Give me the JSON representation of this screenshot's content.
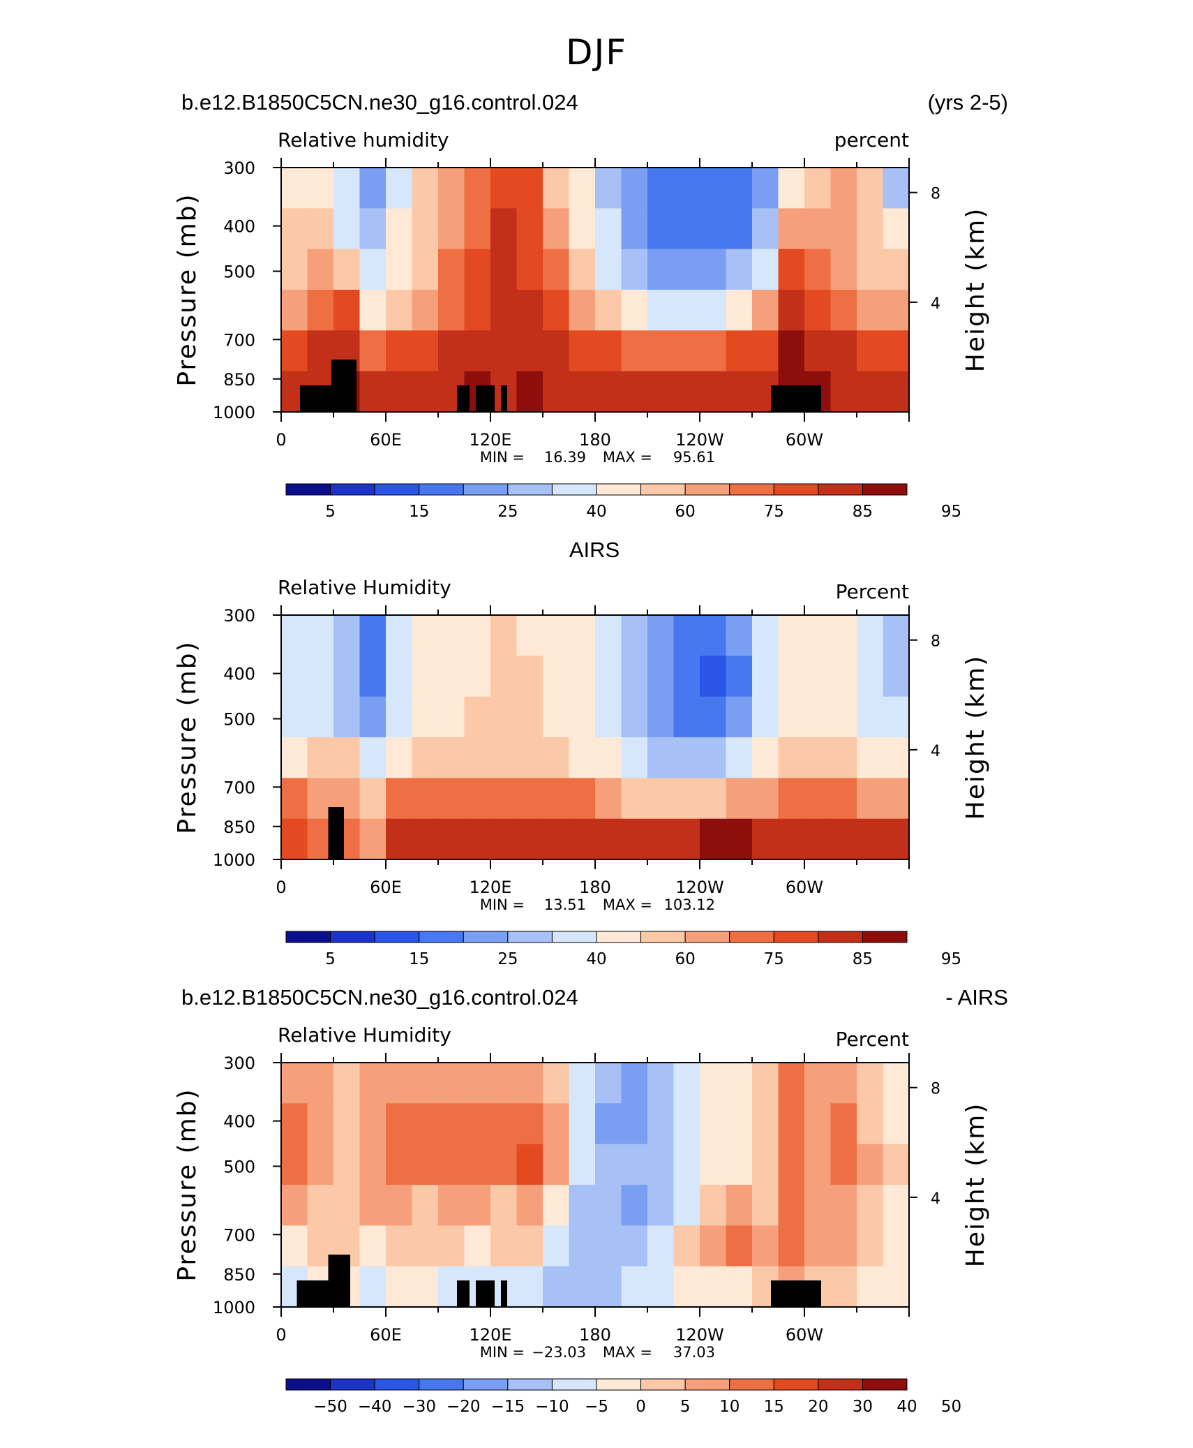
{
  "page": {
    "title": "DJF"
  },
  "colors": {
    "scale": [
      "#0b0f8c",
      "#1d32c8",
      "#2a55e6",
      "#4878ef",
      "#7a9ff2",
      "#a7c1f6",
      "#d6e6fb",
      "#fee8d6",
      "#fbc8a8",
      "#f6a07b",
      "#ef6f45",
      "#e34a22",
      "#c3301a",
      "#8e0d0d"
    ]
  },
  "chart_data": [
    {
      "type": "heatmap",
      "header_left": "b.e12.B1850C5CN.ne30_g16.control.024",
      "header_right": "(yrs 2-5)",
      "subtitle_left": "Relative humidity",
      "subtitle_right": "percent",
      "ylabel": "Pressure (mb)",
      "y2label": "Height (km)",
      "yticks": [
        "300",
        "400",
        "500",
        "700",
        "850",
        "1000"
      ],
      "y2ticks": [
        "8",
        "4"
      ],
      "xticks": [
        "0",
        "60E",
        "120E",
        "180",
        "120W",
        "60W"
      ],
      "stats": {
        "min_label": "MIN =",
        "min": "16.39",
        "max_label": "MAX =",
        "max": "95.61"
      },
      "colorbar_labels": [
        "5",
        "15",
        "25",
        "40",
        "60",
        "75",
        "85",
        "95"
      ],
      "colorbar_levels": [
        5,
        10,
        15,
        20,
        25,
        30,
        40,
        50,
        60,
        70,
        75,
        80,
        85,
        90,
        95
      ],
      "field": [
        [
          7,
          7,
          6,
          4,
          6,
          8,
          9,
          10,
          11,
          11,
          8,
          7,
          5,
          4,
          3,
          3,
          3,
          3,
          4,
          7,
          8,
          9,
          8,
          5
        ],
        [
          8,
          8,
          6,
          5,
          7,
          8,
          9,
          10,
          12,
          11,
          9,
          7,
          6,
          4,
          3,
          3,
          3,
          3,
          5,
          9,
          9,
          9,
          8,
          7
        ],
        [
          8,
          9,
          8,
          6,
          7,
          8,
          10,
          11,
          12,
          11,
          10,
          8,
          6,
          5,
          4,
          4,
          4,
          5,
          6,
          11,
          10,
          9,
          8,
          8
        ],
        [
          9,
          10,
          11,
          7,
          8,
          9,
          10,
          11,
          12,
          12,
          11,
          9,
          8,
          7,
          6,
          6,
          6,
          7,
          9,
          12,
          11,
          10,
          9,
          9
        ],
        [
          11,
          12,
          12,
          10,
          11,
          11,
          12,
          12,
          12,
          12,
          12,
          11,
          11,
          10,
          10,
          10,
          10,
          11,
          11,
          13,
          12,
          12,
          11,
          11
        ],
        [
          12,
          12,
          13,
          12,
          12,
          12,
          12,
          13,
          12,
          13,
          12,
          12,
          12,
          12,
          12,
          12,
          12,
          12,
          12,
          13,
          13,
          12,
          12,
          12
        ]
      ],
      "land": [
        [
          0.03,
          0.1,
          2
        ],
        [
          0.08,
          0.12,
          1
        ],
        [
          0.28,
          0.3,
          2
        ],
        [
          0.31,
          0.34,
          2
        ],
        [
          0.35,
          0.36,
          2
        ],
        [
          0.78,
          0.86,
          2
        ]
      ]
    },
    {
      "type": "heatmap",
      "header_center": "AIRS",
      "subtitle_left": "Relative Humidity",
      "subtitle_right": "Percent",
      "ylabel": "Pressure (mb)",
      "y2label": "Height (km)",
      "yticks": [
        "300",
        "400",
        "500",
        "700",
        "850",
        "1000"
      ],
      "y2ticks": [
        "8",
        "4"
      ],
      "xticks": [
        "0",
        "60E",
        "120E",
        "180",
        "120W",
        "60W"
      ],
      "stats": {
        "min_label": "MIN =",
        "min": "13.51",
        "max_label": "MAX =",
        "max": "103.12"
      },
      "colorbar_labels": [
        "5",
        "15",
        "25",
        "40",
        "60",
        "75",
        "85",
        "95"
      ],
      "colorbar_levels": [
        5,
        10,
        15,
        20,
        25,
        30,
        40,
        50,
        60,
        70,
        75,
        80,
        85,
        90,
        95
      ],
      "field": [
        [
          6,
          6,
          5,
          3,
          6,
          7,
          7,
          7,
          8,
          7,
          7,
          7,
          6,
          5,
          4,
          3,
          3,
          4,
          6,
          7,
          7,
          7,
          6,
          5
        ],
        [
          6,
          6,
          5,
          3,
          6,
          7,
          7,
          7,
          8,
          8,
          7,
          7,
          6,
          5,
          4,
          3,
          2,
          3,
          6,
          7,
          7,
          7,
          6,
          5
        ],
        [
          6,
          6,
          5,
          4,
          6,
          7,
          7,
          8,
          8,
          8,
          7,
          7,
          6,
          5,
          4,
          3,
          3,
          4,
          6,
          7,
          7,
          7,
          6,
          6
        ],
        [
          7,
          8,
          8,
          6,
          7,
          8,
          8,
          8,
          8,
          8,
          8,
          7,
          7,
          6,
          5,
          5,
          5,
          6,
          7,
          8,
          8,
          8,
          7,
          7
        ],
        [
          10,
          9,
          9,
          8,
          10,
          10,
          10,
          10,
          10,
          10,
          10,
          10,
          9,
          8,
          8,
          8,
          8,
          9,
          9,
          10,
          10,
          10,
          9,
          9
        ],
        [
          11,
          10,
          10,
          9,
          12,
          12,
          12,
          12,
          12,
          12,
          12,
          12,
          12,
          12,
          12,
          12,
          13,
          13,
          12,
          12,
          12,
          12,
          12,
          12
        ]
      ],
      "land": [
        [
          0.075,
          0.1,
          1
        ]
      ]
    },
    {
      "type": "heatmap",
      "header_left": "b.e12.B1850C5CN.ne30_g16.control.024",
      "header_right": "- AIRS",
      "subtitle_left": "Relative Humidity",
      "subtitle_right": "Percent",
      "ylabel": "Pressure (mb)",
      "y2label": "Height (km)",
      "yticks": [
        "300",
        "400",
        "500",
        "700",
        "850",
        "1000"
      ],
      "y2ticks": [
        "8",
        "4"
      ],
      "xticks": [
        "0",
        "60E",
        "120E",
        "180",
        "120W",
        "60W"
      ],
      "stats": {
        "min_label": "MIN =",
        "min": "−23.03",
        "max_label": "MAX =",
        "max": "37.03"
      },
      "colorbar_labels": [
        "−50",
        "−40",
        "−30",
        "−20",
        "−15",
        "−10",
        "−5",
        "0",
        "5",
        "10",
        "15",
        "20",
        "30",
        "40",
        "50"
      ],
      "colorbar_levels": [
        -50,
        -40,
        -30,
        -20,
        -15,
        -10,
        -5,
        0,
        5,
        10,
        15,
        20,
        30,
        40,
        50
      ],
      "field": [
        [
          9,
          9,
          8,
          9,
          9,
          9,
          9,
          9,
          9,
          9,
          8,
          6,
          5,
          4,
          5,
          6,
          7,
          7,
          8,
          10,
          9,
          9,
          8,
          7
        ],
        [
          10,
          9,
          8,
          9,
          10,
          10,
          10,
          10,
          10,
          10,
          9,
          6,
          4,
          4,
          5,
          6,
          7,
          7,
          8,
          10,
          9,
          10,
          8,
          7
        ],
        [
          10,
          9,
          8,
          9,
          10,
          10,
          10,
          10,
          10,
          11,
          9,
          6,
          5,
          5,
          5,
          6,
          7,
          7,
          8,
          10,
          9,
          10,
          9,
          8
        ],
        [
          9,
          8,
          8,
          9,
          9,
          8,
          9,
          9,
          8,
          9,
          7,
          5,
          5,
          4,
          5,
          6,
          8,
          9,
          8,
          10,
          9,
          9,
          8,
          7
        ],
        [
          7,
          8,
          8,
          7,
          8,
          8,
          8,
          7,
          8,
          8,
          6,
          5,
          5,
          5,
          6,
          8,
          9,
          10,
          9,
          10,
          9,
          9,
          8,
          7
        ],
        [
          6,
          7,
          7,
          6,
          7,
          7,
          6,
          6,
          6,
          6,
          5,
          5,
          5,
          6,
          6,
          7,
          7,
          7,
          8,
          9,
          8,
          8,
          7,
          7
        ]
      ],
      "land": [
        [
          0.025,
          0.1,
          2
        ],
        [
          0.075,
          0.11,
          1
        ],
        [
          0.28,
          0.3,
          2
        ],
        [
          0.31,
          0.34,
          2
        ],
        [
          0.35,
          0.36,
          2
        ],
        [
          0.78,
          0.86,
          2
        ]
      ]
    }
  ]
}
